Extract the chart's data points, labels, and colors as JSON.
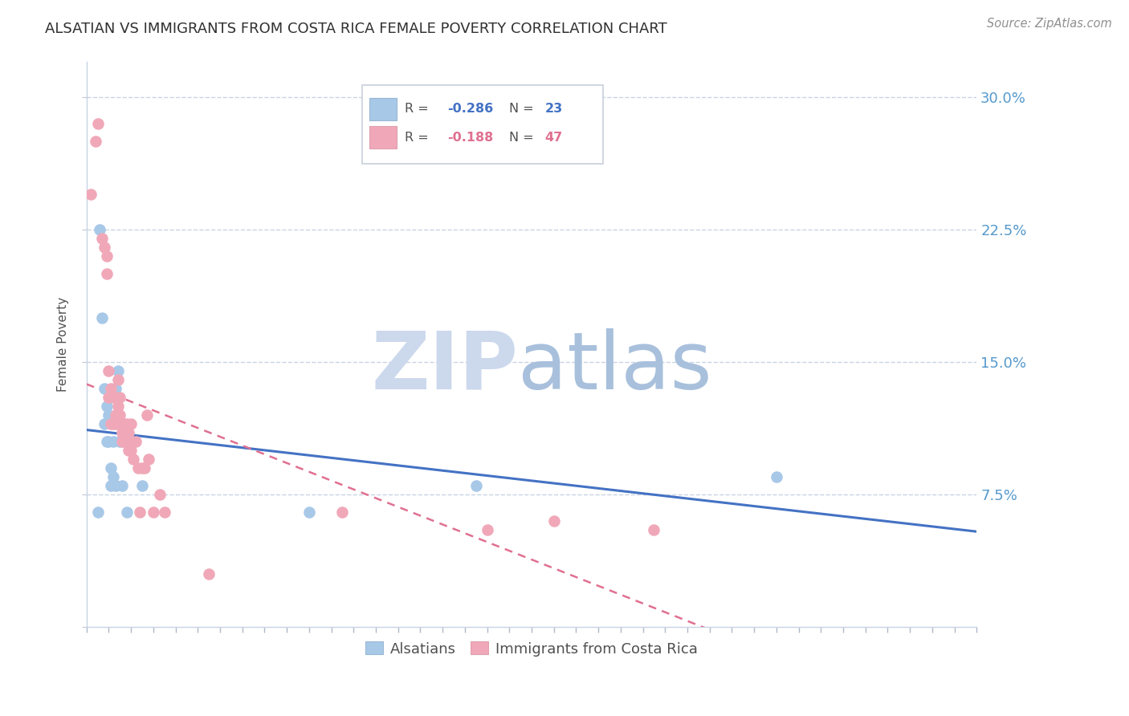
{
  "title": "ALSATIAN VS IMMIGRANTS FROM COSTA RICA FEMALE POVERTY CORRELATION CHART",
  "source": "Source: ZipAtlas.com",
  "ylabel": "Female Poverty",
  "xlim": [
    0.0,
    0.4
  ],
  "ylim": [
    0.0,
    0.32
  ],
  "yticks": [
    0.0,
    0.075,
    0.15,
    0.225,
    0.3
  ],
  "ytick_labels": [
    "",
    "7.5%",
    "15.0%",
    "22.5%",
    "30.0%"
  ],
  "watermark_zip": "ZIP",
  "watermark_atlas": "atlas",
  "blue_color": "#a8c8e8",
  "pink_color": "#f0a8b8",
  "blue_line_color": "#4472c4",
  "pink_line_color": "#e07090",
  "title_color": "#303030",
  "axis_label_color": "#505050",
  "right_tick_color": "#5599cc",
  "grid_color": "#c8d4e4",
  "legend_r1": "R = ",
  "legend_v1": "-0.286",
  "legend_n1_label": "N = ",
  "legend_n1_val": "23",
  "legend_r2": "R = ",
  "legend_v2": "-0.188",
  "legend_n2_label": "N = ",
  "legend_n2_val": "47",
  "alsatian_x": [
    0.005,
    0.006,
    0.007,
    0.008,
    0.008,
    0.009,
    0.009,
    0.01,
    0.01,
    0.011,
    0.011,
    0.012,
    0.012,
    0.013,
    0.013,
    0.014,
    0.015,
    0.016,
    0.018,
    0.025,
    0.1,
    0.175,
    0.31
  ],
  "alsatian_y": [
    0.065,
    0.225,
    0.175,
    0.135,
    0.115,
    0.125,
    0.105,
    0.12,
    0.105,
    0.09,
    0.08,
    0.105,
    0.085,
    0.08,
    0.135,
    0.145,
    0.105,
    0.08,
    0.065,
    0.08,
    0.065,
    0.08,
    0.085
  ],
  "cr_x": [
    0.002,
    0.004,
    0.005,
    0.007,
    0.008,
    0.009,
    0.009,
    0.01,
    0.01,
    0.011,
    0.011,
    0.012,
    0.012,
    0.013,
    0.013,
    0.013,
    0.014,
    0.014,
    0.015,
    0.015,
    0.016,
    0.016,
    0.016,
    0.017,
    0.017,
    0.018,
    0.018,
    0.019,
    0.019,
    0.02,
    0.02,
    0.021,
    0.022,
    0.023,
    0.024,
    0.025,
    0.026,
    0.027,
    0.028,
    0.03,
    0.033,
    0.035,
    0.055,
    0.115,
    0.18,
    0.21,
    0.255
  ],
  "cr_y": [
    0.245,
    0.275,
    0.285,
    0.22,
    0.215,
    0.21,
    0.2,
    0.145,
    0.13,
    0.135,
    0.115,
    0.13,
    0.115,
    0.13,
    0.12,
    0.115,
    0.14,
    0.125,
    0.13,
    0.12,
    0.115,
    0.11,
    0.105,
    0.115,
    0.105,
    0.115,
    0.105,
    0.11,
    0.1,
    0.115,
    0.1,
    0.095,
    0.105,
    0.09,
    0.065,
    0.09,
    0.09,
    0.12,
    0.095,
    0.065,
    0.075,
    0.065,
    0.03,
    0.065,
    0.055,
    0.06,
    0.055
  ]
}
